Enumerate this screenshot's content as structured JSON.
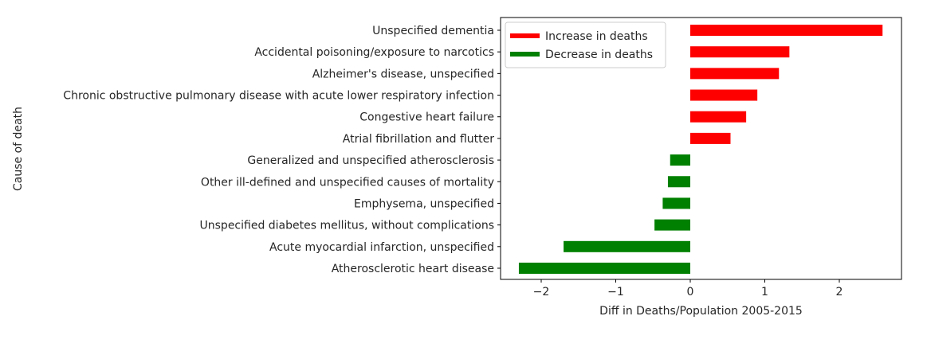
{
  "chart_data": {
    "type": "bar",
    "orientation": "horizontal",
    "title": "",
    "xlabel": "Diff in Deaths/Population 2005-2015",
    "ylabel": "Cause of death",
    "xlim": [
      -2.5,
      2.8
    ],
    "xticks": [
      -2,
      -1,
      0,
      1,
      2
    ],
    "xtick_labels": [
      "−2",
      "−1",
      "0",
      "1",
      "2"
    ],
    "grid": false,
    "legend_position": "top-left",
    "categories": [
      "Unspecified dementia",
      "Accidental poisoning/exposure to narcotics",
      "Alzheimer's disease, unspecified",
      "Chronic obstructive pulmonary disease with acute lower respiratory infection",
      "Congestive heart failure",
      "Atrial fibrillation and flutter",
      "Generalized and unspecified atherosclerosis",
      "Other ill-defined and unspecified causes of mortality",
      "Emphysema, unspecified",
      "Unspecified diabetes mellitus, without complications",
      "Acute myocardial infarction, unspecified",
      "Atherosclerotic heart disease"
    ],
    "values": [
      2.58,
      1.33,
      1.19,
      0.9,
      0.75,
      0.54,
      -0.27,
      -0.3,
      -0.37,
      -0.48,
      -1.7,
      -2.3
    ],
    "legend": [
      {
        "label": "Increase in deaths",
        "color": "#ff0000"
      },
      {
        "label": "Decrease in deaths",
        "color": "#008000"
      }
    ],
    "colors": {
      "increase": "#ff0000",
      "decrease": "#008000",
      "axis": "#000000",
      "text": "#262626"
    }
  }
}
